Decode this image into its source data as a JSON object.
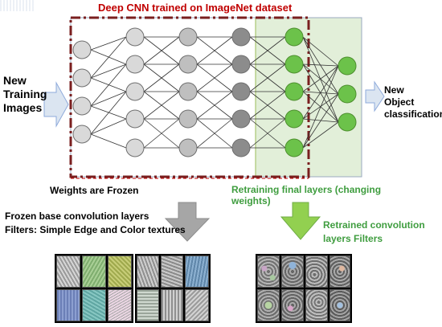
{
  "title": "Deep CNN trained on ImageNet dataset",
  "left_input": [
    "New",
    "Training",
    "Images"
  ],
  "right_output": [
    "New",
    "Object",
    "classification"
  ],
  "frozen_label": "Weights are Frozen",
  "retrain_label": [
    "Retraining final layers (changing",
    "weights)"
  ],
  "frozen_desc": [
    "Frozen base convolution layers",
    "Filters: Simple Edge and Color textures"
  ],
  "retrained_desc": [
    "Retrained convolution",
    "layers Filters"
  ],
  "colors": {
    "title": "#c00000",
    "frozen_box_border": "#7a1f1f",
    "retrain_panel": "#e2efd9",
    "retrain_text": "#3f9d3f",
    "green_node": "#6cc24a",
    "grey_node_light": "#d9d9d9",
    "grey_node_mid": "#bfbfbf",
    "grey_node_dark": "#8c8c8c",
    "arrow_blue": "#dbe5f1",
    "arrow_grey": "#a6a6a6",
    "arrow_green": "#92d050"
  },
  "icons": [
    "right-arrow-icon",
    "down-arrow-icon"
  ]
}
